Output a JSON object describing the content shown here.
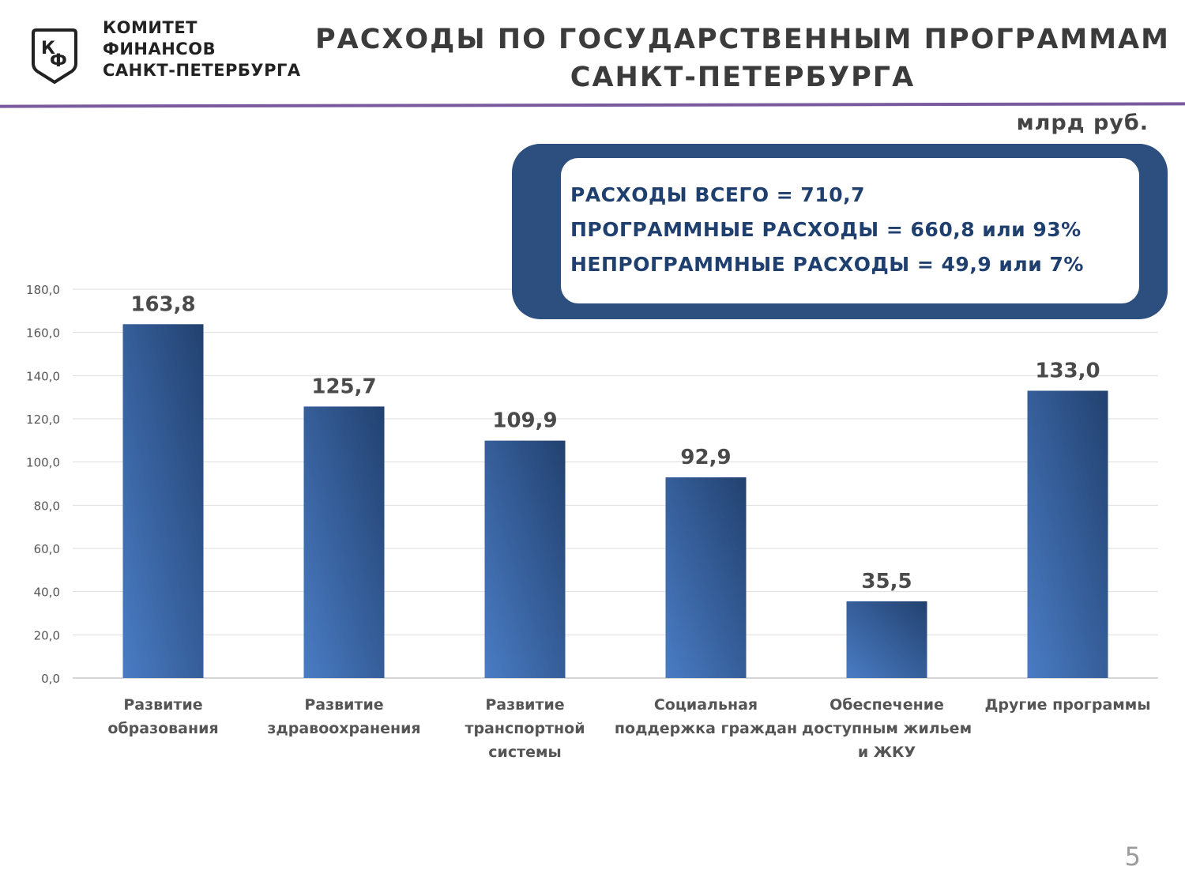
{
  "header": {
    "org_lines": [
      "КОМИТЕТ",
      "ФИНАНСОВ",
      "САНКТ-ПЕТЕРБУРГА"
    ],
    "logo_letters": "КФ",
    "title_lines": [
      "РАСХОДЫ ПО ГОСУДАРСТВЕННЫМ ПРОГРАММАМ",
      "САНКТ-ПЕТЕРБУРГА"
    ]
  },
  "unit": "млрд руб.",
  "summary": {
    "line1": "РАСХОДЫ ВСЕГО = 710,7",
    "line2": "ПРОГРАММНЫЕ РАСХОДЫ = 660,8 или 93%",
    "line3": "НЕПРОГРАММНЫЕ РАСХОДЫ = 49,9 или 7%"
  },
  "colors": {
    "bar_light": "#4a7cc4",
    "bar_dark": "#22416f",
    "box": "#2c4f7f",
    "accent_line": "#7a5a9e"
  },
  "chart_data": {
    "type": "bar",
    "categories": [
      [
        "Развитие",
        "образования"
      ],
      [
        "Развитие",
        "здравоохранения"
      ],
      [
        "Развитие",
        "транспортной",
        "системы"
      ],
      [
        "Социальная",
        "поддержка граждан"
      ],
      [
        "Обеспечение",
        "доступным жильем",
        "и ЖКУ"
      ],
      [
        "Другие программы"
      ]
    ],
    "values": [
      163.8,
      125.7,
      109.9,
      92.9,
      35.5,
      133.0
    ],
    "value_labels": [
      "163,8",
      "125,7",
      "109,9",
      "92,9",
      "35,5",
      "133,0"
    ],
    "ylim": [
      0,
      180
    ],
    "yticks": [
      "0,0",
      "20,0",
      "40,0",
      "60,0",
      "80,0",
      "100,0",
      "120,0",
      "140,0",
      "160,0",
      "180,0"
    ],
    "grid": true
  },
  "page_number": "5"
}
